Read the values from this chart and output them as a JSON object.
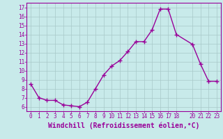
{
  "x": [
    0,
    1,
    2,
    3,
    4,
    5,
    6,
    7,
    8,
    9,
    10,
    11,
    12,
    13,
    14,
    15,
    16,
    17,
    18,
    20,
    21,
    22,
    23
  ],
  "y": [
    8.5,
    7.0,
    6.7,
    6.7,
    6.2,
    6.1,
    6.0,
    6.5,
    8.0,
    9.5,
    10.5,
    11.1,
    12.1,
    13.2,
    13.2,
    14.5,
    16.8,
    16.8,
    14.0,
    12.9,
    10.7,
    8.8,
    8.8
  ],
  "line_color": "#990099",
  "marker": "+",
  "markersize": 4,
  "linewidth": 1.0,
  "xlabel": "Windchill (Refroidissement éolien,°C)",
  "xlabel_fontsize": 7,
  "ylim": [
    5.5,
    17.5
  ],
  "xlim": [
    -0.5,
    23.5
  ],
  "yticks": [
    6,
    7,
    8,
    9,
    10,
    11,
    12,
    13,
    14,
    15,
    16,
    17
  ],
  "xticks": [
    0,
    1,
    2,
    3,
    4,
    5,
    6,
    7,
    8,
    9,
    10,
    11,
    12,
    13,
    14,
    15,
    16,
    17,
    18,
    20,
    21,
    22,
    23
  ],
  "xtick_labels": [
    "0",
    "1",
    "2",
    "3",
    "4",
    "5",
    "6",
    "7",
    "8",
    "9",
    "10",
    "11",
    "12",
    "13",
    "14",
    "15",
    "16",
    "17",
    "18",
    "20",
    "21",
    "22",
    "23"
  ],
  "background_color": "#c8eaea",
  "grid_color": "#a8c8c8",
  "tick_fontsize": 5.5,
  "label_color": "#990099"
}
